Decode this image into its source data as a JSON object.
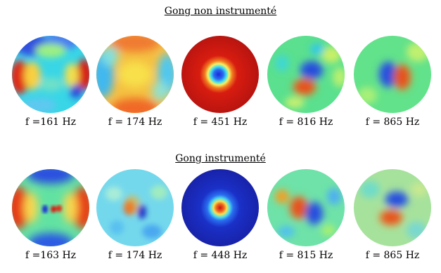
{
  "sections": [
    {
      "title": "Gong non instrumenté",
      "modes": [
        {
          "label": "f =161 Hz",
          "colors": {
            "bg": "#2fd0e0"
          }
        },
        {
          "label": "f = 174 Hz",
          "colors": {
            "bg": "#f6b632"
          }
        },
        {
          "label": "f = 451 Hz",
          "colors": {
            "bg": "#cc1a10"
          }
        },
        {
          "label": "f = 816 Hz",
          "colors": {
            "bg": "#58e090"
          }
        },
        {
          "label": "f = 865 Hz",
          "colors": {
            "bg": "#5ee08a"
          }
        }
      ]
    },
    {
      "title": "Gong instrumenté",
      "modes": [
        {
          "label": "f =163 Hz",
          "colors": {
            "bg": "#5fe6a0"
          }
        },
        {
          "label": "f = 174 Hz",
          "colors": {
            "bg": "#6fd6ea"
          }
        },
        {
          "label": "f = 448 Hz",
          "colors": {
            "bg": "#1a28b8"
          }
        },
        {
          "label": "f = 815 Hz",
          "colors": {
            "bg": "#6fe4a6"
          }
        },
        {
          "label": "f = 865 Hz",
          "colors": {
            "bg": "#9ee0a0"
          }
        }
      ]
    }
  ]
}
